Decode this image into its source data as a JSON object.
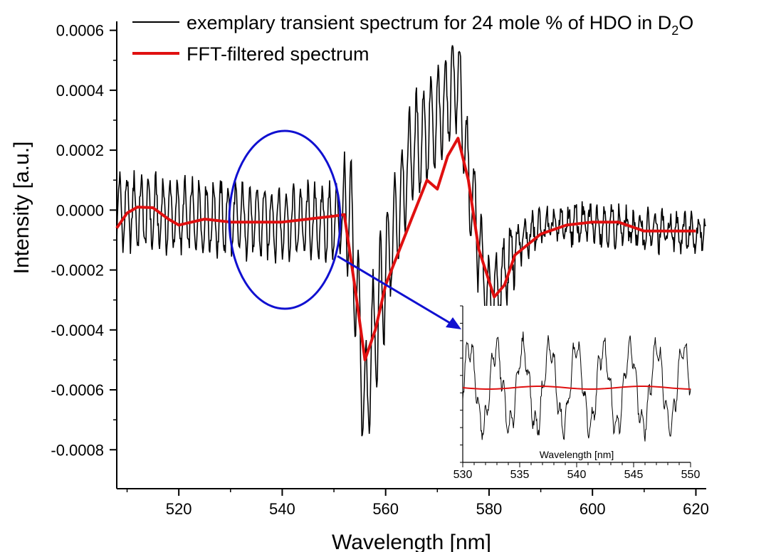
{
  "chart_data": {
    "type": "line",
    "title": "",
    "xlabel": "Wavelength [nm]",
    "ylabel": "Intensity [a.u.]",
    "xlim": [
      508,
      622
    ],
    "ylim": [
      -0.00093,
      0.00063
    ],
    "x_ticks": [
      520,
      540,
      560,
      580,
      600,
      620
    ],
    "y_ticks": [
      {
        "value": 0.0006,
        "label": "0.0006"
      },
      {
        "value": 0.0004,
        "label": "0.0004"
      },
      {
        "value": 0.0002,
        "label": "0.0002"
      },
      {
        "value": 0.0,
        "label": "0.0000"
      },
      {
        "value": -0.0002,
        "label": "-0.0002"
      },
      {
        "value": -0.0004,
        "label": "-0.0004"
      },
      {
        "value": -0.0006,
        "label": "-0.0006"
      },
      {
        "value": -0.0008,
        "label": "-0.0008"
      }
    ],
    "grid": false,
    "legend_placement": "top",
    "colors": {
      "raw": "#000000",
      "filtered": "#e01010",
      "highlight": "#1010d0",
      "arrow": "#1010d0"
    },
    "series": [
      {
        "name": "exemplary transient spectrum for 24 mole % of HDO in D2O",
        "legend_main": "exemplary transient spectrum for 24 mole % of HDO in D",
        "legend_sub": "2",
        "legend_end": "O",
        "color": "#000000",
        "generated": "oscillating noisy trace, ~1.4 nm fringe period",
        "x": [
          508,
          520,
          530,
          540,
          550,
          553,
          555,
          556,
          557,
          560,
          565,
          570,
          574,
          576,
          580,
          582,
          585,
          590,
          600,
          610,
          620
        ],
        "values": [
          0.0,
          -2e-05,
          -3e-05,
          -4e-05,
          -4e-05,
          0.0,
          -0.0004,
          -0.0007,
          -0.0005,
          -0.0002,
          0.0002,
          0.0003,
          0.00045,
          0.0001,
          -0.0003,
          -0.00025,
          -0.00012,
          -6e-05,
          -4e-05,
          -7e-05,
          -7e-05
        ]
      },
      {
        "name": "FFT-filtered spectrum",
        "color": "#e01010",
        "x": [
          508,
          510,
          512,
          515,
          518,
          520,
          525,
          530,
          535,
          540,
          545,
          550,
          552,
          554,
          556,
          558,
          560,
          565,
          568,
          570,
          572,
          574,
          576,
          578,
          581,
          583,
          585,
          590,
          595,
          600,
          605,
          610,
          615,
          620
        ],
        "values": [
          -6e-05,
          -1e-05,
          1e-05,
          8e-06,
          -3e-05,
          -5e-05,
          -3e-05,
          -4e-05,
          -4e-05,
          -4e-05,
          -3e-05,
          -2e-05,
          -1.5e-05,
          -0.00025,
          -0.0005,
          -0.0004,
          -0.00025,
          -3e-05,
          0.0001,
          7e-05,
          0.00018,
          0.00024,
          0.0001,
          -0.00013,
          -0.00029,
          -0.00025,
          -0.00015,
          -8e-05,
          -5e-05,
          -4e-05,
          -4e-05,
          -7e-05,
          -7e-05,
          -7e-05
        ]
      }
    ],
    "inset": {
      "xlabel": "Wavelength [nm]",
      "xlim": [
        530,
        550
      ],
      "x_ticks": [
        530,
        535,
        540,
        545,
        550
      ],
      "note": "zoomed view of highlighted region 530-550 nm"
    }
  }
}
